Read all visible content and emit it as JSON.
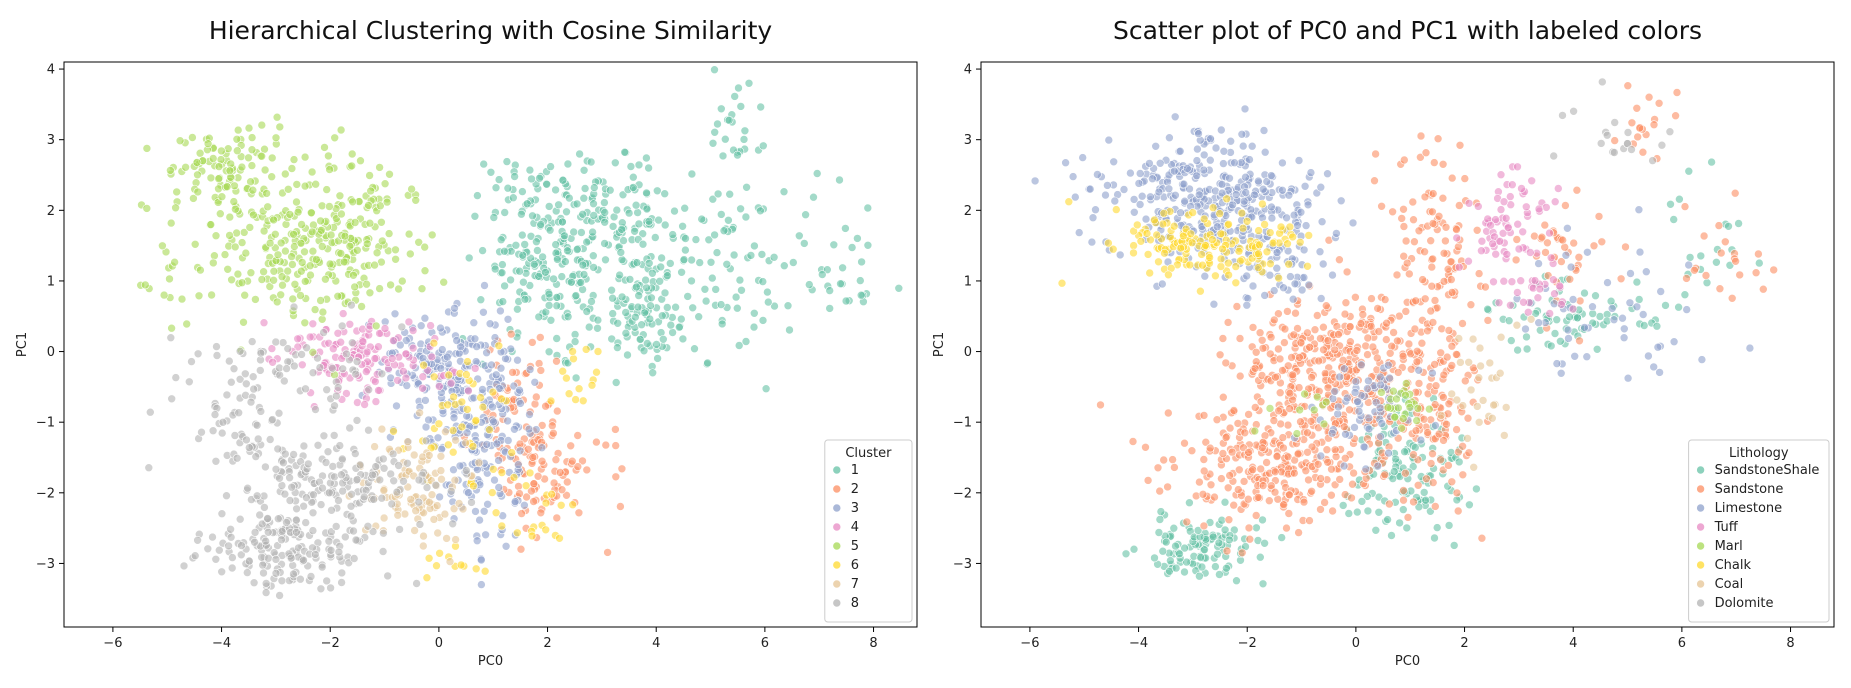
{
  "colors": {
    "c1": "#66c2a5",
    "c2": "#fc8d62",
    "c3": "#8da0cb",
    "c4": "#e78ac3",
    "c5": "#a6d854",
    "c6": "#ffd92f",
    "c7": "#e5c494",
    "c8": "#b3b3b3"
  },
  "chart_data": [
    {
      "type": "scatter",
      "title": "Hierarchical Clustering with Cosine Similarity",
      "xlabel": "PC0",
      "ylabel": "PC1",
      "xlim": [
        -6.9,
        8.8
      ],
      "ylim": [
        -3.9,
        4.1
      ],
      "xticks": [
        -6,
        -4,
        -2,
        0,
        2,
        4,
        6,
        8
      ],
      "yticks": [
        -3,
        -2,
        -1,
        0,
        1,
        2,
        3,
        4
      ],
      "legend": {
        "title": "Cluster",
        "placement": "lower-right"
      },
      "series": [
        {
          "name": "1",
          "color": "#66c2a5",
          "clusters": [
            {
              "cx": 2.0,
              "cy": 1.2,
              "sx": 0.6,
              "sy": 0.5,
              "n": 160
            },
            {
              "cx": 3.2,
              "cy": 1.8,
              "sx": 0.6,
              "sy": 0.4,
              "n": 120
            },
            {
              "cx": 3.8,
              "cy": 0.6,
              "sx": 0.6,
              "sy": 0.4,
              "n": 110
            },
            {
              "cx": 5.6,
              "cy": 1.3,
              "sx": 0.9,
              "sy": 0.7,
              "n": 90
            },
            {
              "cx": 1.5,
              "cy": 2.3,
              "sx": 0.5,
              "sy": 0.3,
              "n": 40
            },
            {
              "cx": 5.4,
              "cy": 3.2,
              "sx": 0.3,
              "sy": 0.4,
              "n": 25
            },
            {
              "cx": 7.4,
              "cy": 1.1,
              "sx": 0.5,
              "sy": 0.5,
              "n": 20
            }
          ]
        },
        {
          "name": "2",
          "color": "#fc8d62",
          "clusters": [
            {
              "cx": 1.5,
              "cy": -1.0,
              "sx": 0.4,
              "sy": 0.6,
              "n": 80
            },
            {
              "cx": 2.0,
              "cy": -1.7,
              "sx": 0.4,
              "sy": 0.4,
              "n": 60
            },
            {
              "cx": 3.0,
              "cy": -1.5,
              "sx": 0.4,
              "sy": 0.4,
              "n": 12
            }
          ]
        },
        {
          "name": "3",
          "color": "#8da0cb",
          "clusters": [
            {
              "cx": 0.5,
              "cy": -0.4,
              "sx": 0.6,
              "sy": 0.5,
              "n": 150
            },
            {
              "cx": 0.9,
              "cy": -1.5,
              "sx": 0.4,
              "sy": 0.6,
              "n": 120
            },
            {
              "cx": -0.2,
              "cy": -0.1,
              "sx": 0.5,
              "sy": 0.3,
              "n": 60
            }
          ]
        },
        {
          "name": "4",
          "color": "#e78ac3",
          "clusters": [
            {
              "cx": -1.4,
              "cy": -0.1,
              "sx": 0.8,
              "sy": 0.3,
              "n": 140
            }
          ]
        },
        {
          "name": "5",
          "color": "#a6d854",
          "clusters": [
            {
              "cx": -2.2,
              "cy": 1.6,
              "sx": 1.0,
              "sy": 0.6,
              "n": 300
            },
            {
              "cx": -3.8,
              "cy": 2.6,
              "sx": 0.6,
              "sy": 0.3,
              "n": 90
            },
            {
              "cx": -4.8,
              "cy": 1.4,
              "sx": 0.5,
              "sy": 0.5,
              "n": 30
            }
          ]
        },
        {
          "name": "6",
          "color": "#ffd92f",
          "clusters": [
            {
              "cx": 0.4,
              "cy": -1.0,
              "sx": 0.5,
              "sy": 0.5,
              "n": 45
            },
            {
              "cx": 1.6,
              "cy": -2.3,
              "sx": 0.4,
              "sy": 0.3,
              "n": 20
            },
            {
              "cx": 2.6,
              "cy": -0.4,
              "sx": 0.3,
              "sy": 0.3,
              "n": 14
            },
            {
              "cx": 0.2,
              "cy": -3.0,
              "sx": 0.5,
              "sy": 0.2,
              "n": 10
            }
          ]
        },
        {
          "name": "7",
          "color": "#e5c494",
          "clusters": [
            {
              "cx": -0.5,
              "cy": -1.9,
              "sx": 0.5,
              "sy": 0.4,
              "n": 100
            }
          ]
        },
        {
          "name": "8",
          "color": "#b3b3b3",
          "clusters": [
            {
              "cx": -2.0,
              "cy": -1.8,
              "sx": 0.9,
              "sy": 0.3,
              "n": 170
            },
            {
              "cx": -2.8,
              "cy": -2.8,
              "sx": 0.8,
              "sy": 0.25,
              "n": 170
            },
            {
              "cx": -2.8,
              "cy": -0.3,
              "sx": 0.9,
              "sy": 0.4,
              "n": 80
            },
            {
              "cx": -3.8,
              "cy": -1.2,
              "sx": 0.4,
              "sy": 0.3,
              "n": 30
            }
          ]
        }
      ]
    },
    {
      "type": "scatter",
      "title": "Scatter plot of PC0 and PC1 with labeled colors",
      "xlabel": "PC0",
      "ylabel": "PC1",
      "xlim": [
        -6.9,
        8.8
      ],
      "ylim": [
        -3.9,
        4.1
      ],
      "xticks": [
        -6,
        -4,
        -2,
        0,
        2,
        4,
        6,
        8
      ],
      "yticks": [
        -3,
        -2,
        -1,
        0,
        1,
        2,
        3,
        4
      ],
      "legend": {
        "title": "Lithology",
        "placement": "lower-right"
      },
      "series": [
        {
          "name": "SandstoneShale",
          "color": "#66c2a5",
          "clusters": [
            {
              "cx": -2.8,
              "cy": -2.8,
              "sx": 0.6,
              "sy": 0.25,
              "n": 110
            },
            {
              "cx": 1.0,
              "cy": -1.7,
              "sx": 0.5,
              "sy": 0.5,
              "n": 120
            },
            {
              "cx": 4.0,
              "cy": 0.5,
              "sx": 0.7,
              "sy": 0.25,
              "n": 70
            },
            {
              "cx": 6.5,
              "cy": 1.5,
              "sx": 0.6,
              "sy": 0.6,
              "n": 20
            }
          ]
        },
        {
          "name": "Sandstone",
          "color": "#fc8d62",
          "clusters": [
            {
              "cx": -0.3,
              "cy": -0.3,
              "sx": 1.0,
              "sy": 0.5,
              "n": 420
            },
            {
              "cx": -1.6,
              "cy": -1.7,
              "sx": 1.0,
              "sy": 0.4,
              "n": 250
            },
            {
              "cx": 1.5,
              "cy": 1.3,
              "sx": 0.5,
              "sy": 0.7,
              "n": 110
            },
            {
              "cx": 1.5,
              "cy": -1.0,
              "sx": 0.4,
              "sy": 0.6,
              "n": 70
            },
            {
              "cx": 3.8,
              "cy": 1.5,
              "sx": 0.4,
              "sy": 0.4,
              "n": 40
            },
            {
              "cx": 5.4,
              "cy": 3.3,
              "sx": 0.3,
              "sy": 0.4,
              "n": 18
            },
            {
              "cx": 6.8,
              "cy": 1.4,
              "sx": 0.5,
              "sy": 0.5,
              "n": 20
            }
          ]
        },
        {
          "name": "Limestone",
          "color": "#8da0cb",
          "clusters": [
            {
              "cx": -2.8,
              "cy": 2.2,
              "sx": 1.0,
              "sy": 0.5,
              "n": 330
            },
            {
              "cx": -1.5,
              "cy": 1.4,
              "sx": 0.6,
              "sy": 0.4,
              "n": 90
            },
            {
              "cx": 0.3,
              "cy": -0.8,
              "sx": 0.5,
              "sy": 0.4,
              "n": 70
            },
            {
              "cx": 4.8,
              "cy": 0.5,
              "sx": 1.0,
              "sy": 0.6,
              "n": 50
            }
          ]
        },
        {
          "name": "Tuff",
          "color": "#e78ac3",
          "clusters": [
            {
              "cx": 2.8,
              "cy": 1.8,
              "sx": 0.4,
              "sy": 0.4,
              "n": 70
            },
            {
              "cx": 3.2,
              "cy": 0.9,
              "sx": 0.4,
              "sy": 0.2,
              "n": 25
            }
          ]
        },
        {
          "name": "Marl",
          "color": "#a6d854",
          "clusters": [
            {
              "cx": 0.8,
              "cy": -0.8,
              "sx": 0.2,
              "sy": 0.2,
              "n": 25
            },
            {
              "cx": -1.0,
              "cy": -0.9,
              "sx": 0.3,
              "sy": 0.2,
              "n": 10
            }
          ]
        },
        {
          "name": "Chalk",
          "color": "#ffd92f",
          "clusters": [
            {
              "cx": -2.8,
              "cy": 1.5,
              "sx": 0.9,
              "sy": 0.25,
              "n": 160
            }
          ]
        },
        {
          "name": "Coal",
          "color": "#e5c494",
          "clusters": [
            {
              "cx": 2.4,
              "cy": -0.4,
              "sx": 0.4,
              "sy": 0.5,
              "n": 30
            }
          ]
        },
        {
          "name": "Dolomite",
          "color": "#b3b3b3",
          "clusters": [
            {
              "cx": 4.8,
              "cy": 3.0,
              "sx": 0.5,
              "sy": 0.3,
              "n": 18
            }
          ]
        }
      ]
    }
  ]
}
